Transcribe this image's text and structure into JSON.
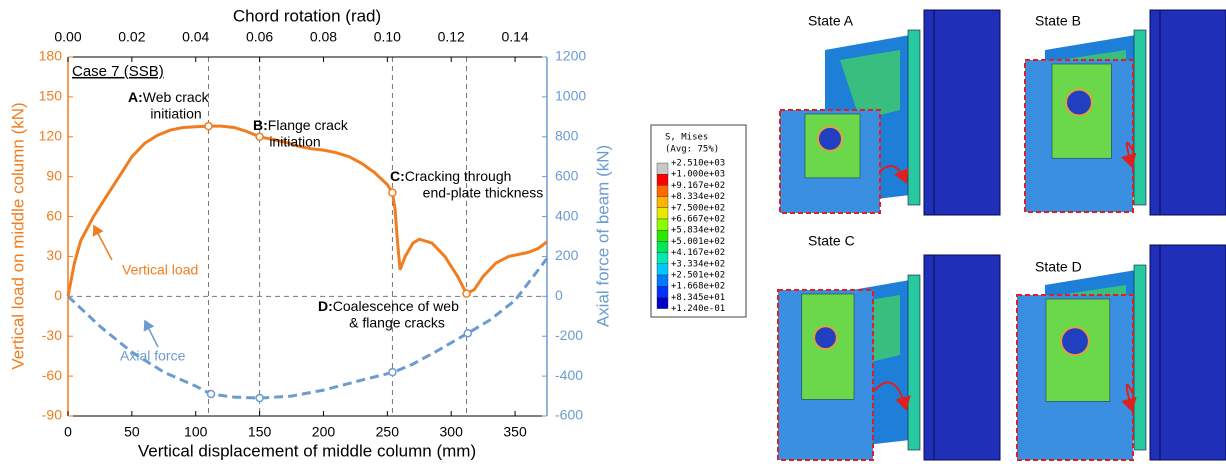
{
  "chart_data": {
    "type": "line",
    "x_label": "Vertical displacement of middle column (mm)",
    "x2_label": "Chord rotation (rad)",
    "y_label": "Vertical load on middle column (kN)",
    "y2_label": "Axial force of beam (kN)",
    "case_label": "Case 7 (SSB)",
    "xlim": [
      0,
      375
    ],
    "xticks": [
      0,
      50,
      100,
      150,
      200,
      250,
      300,
      350
    ],
    "x2lim": [
      0,
      0.15
    ],
    "x2ticks": [
      {
        "value": 0,
        "label": "0.00"
      },
      {
        "value": 0.02,
        "label": "0.02"
      },
      {
        "value": 0.04,
        "label": "0.04"
      },
      {
        "value": 0.06,
        "label": "0.06"
      },
      {
        "value": 0.08,
        "label": "0.08"
      },
      {
        "value": 0.1,
        "label": "0.10"
      },
      {
        "value": 0.12,
        "label": "0.12"
      },
      {
        "value": 0.14,
        "label": "0.14"
      }
    ],
    "ylim": [
      -90,
      180
    ],
    "yticks": [
      -90,
      -60,
      -30,
      0,
      30,
      60,
      90,
      120,
      150,
      180
    ],
    "y2lim": [
      -600,
      1200
    ],
    "y2ticks": [
      -600,
      -400,
      -200,
      0,
      200,
      400,
      600,
      800,
      1000,
      1200
    ],
    "series": [
      {
        "name": "Vertical load",
        "color": "#f07d1f",
        "dashed": false,
        "x": [
          0,
          5,
          10,
          20,
          30,
          40,
          50,
          60,
          70,
          80,
          90,
          100,
          110,
          120,
          130,
          140,
          150,
          160,
          170,
          180,
          190,
          200,
          210,
          220,
          230,
          240,
          250,
          254,
          256,
          258,
          260,
          264,
          270,
          275,
          285,
          295,
          305,
          312,
          318,
          325,
          335,
          345,
          360,
          368,
          375
        ],
        "values": [
          0,
          25,
          42,
          60,
          75,
          90,
          105,
          115,
          121,
          125,
          127,
          127.5,
          128,
          128,
          127,
          124,
          120,
          118,
          116,
          113,
          111,
          110,
          108,
          105,
          100,
          93,
          84,
          78,
          66,
          40,
          20,
          30,
          40,
          43,
          40,
          30,
          15,
          2,
          5,
          15,
          25,
          30,
          33,
          36,
          41
        ],
        "markers": {
          "x": [
            110,
            150,
            254,
            312
          ],
          "values": [
            128,
            120,
            78,
            2
          ]
        }
      },
      {
        "name": "Axial force",
        "color": "#6b9bcf",
        "dashed": true,
        "axis": "y2",
        "x": [
          0,
          10,
          25,
          50,
          75,
          100,
          112,
          130,
          150,
          175,
          200,
          230,
          255,
          270,
          290,
          313,
          330,
          350,
          375
        ],
        "values": [
          0,
          -60,
          -150,
          -280,
          -380,
          -450,
          -490,
          -505,
          -510,
          -500,
          -470,
          -420,
          -380,
          -340,
          -270,
          -185,
          -120,
          -20,
          190
        ],
        "markers": {
          "x": [
            112,
            150,
            254,
            313
          ],
          "values": [
            -490,
            -510,
            -380,
            -185
          ]
        }
      }
    ],
    "annotations": [
      {
        "label": "A:",
        "lines": [
          "Web crack",
          "initiation"
        ]
      },
      {
        "label": "B:",
        "lines": [
          "Flange crack",
          "initiation"
        ]
      },
      {
        "label": "C:",
        "lines": [
          "Cracking through",
          "end-plate thickness"
        ]
      },
      {
        "label": "D:",
        "lines": [
          "Coalescence of web",
          "& flange cracks"
        ]
      }
    ]
  },
  "contour_legend": {
    "title": "S, Mises",
    "subtitle": "(Avg: 75%)",
    "levels": [
      "+2.510e+03",
      "+1.000e+03",
      "+9.167e+02",
      "+8.334e+02",
      "+7.500e+02",
      "+6.667e+02",
      "+5.834e+02",
      "+5.001e+02",
      "+4.167e+02",
      "+3.334e+02",
      "+2.501e+02",
      "+1.668e+02",
      "+8.345e+01",
      "+1.240e-01"
    ],
    "colors": [
      "#c8c8c8",
      "#ff0000",
      "#ff6a00",
      "#ffb400",
      "#e8e800",
      "#8cff00",
      "#2ee800",
      "#00e85a",
      "#00e8b4",
      "#00c8ff",
      "#0078ff",
      "#0032ff",
      "#0000c8"
    ]
  },
  "states": [
    "State A",
    "State B",
    "State C",
    "State D"
  ]
}
